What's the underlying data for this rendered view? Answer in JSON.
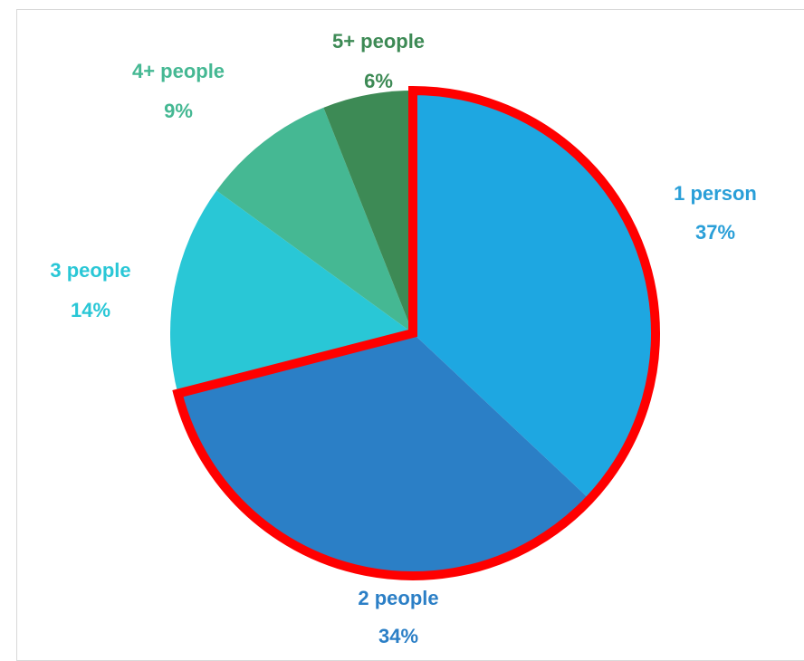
{
  "chart_data": {
    "type": "pie",
    "title": "",
    "start_angle_deg": 0,
    "direction": "clockwise",
    "slices": [
      {
        "label": "1 person",
        "value": 37,
        "percent_label": "37%",
        "color": "#1ea7e1"
      },
      {
        "label": "2 people",
        "value": 34,
        "percent_label": "34%",
        "color": "#2b7fc6"
      },
      {
        "label": "3 people",
        "value": 14,
        "percent_label": "14%",
        "color": "#29c7d6"
      },
      {
        "label": "4+ people",
        "value": 9,
        "percent_label": "9%",
        "color": "#45b893"
      },
      {
        "label": "5+ people",
        "value": 6,
        "percent_label": "6%",
        "color": "#3d8a55"
      }
    ],
    "highlight": {
      "slices": [
        "1 person",
        "2 people"
      ],
      "outline_color": "#ff0000"
    },
    "label_colors": [
      "#2a9fd8",
      "#2b7fc6",
      "#29c7d6",
      "#45b893",
      "#3d8a55"
    ],
    "legend": "none"
  }
}
